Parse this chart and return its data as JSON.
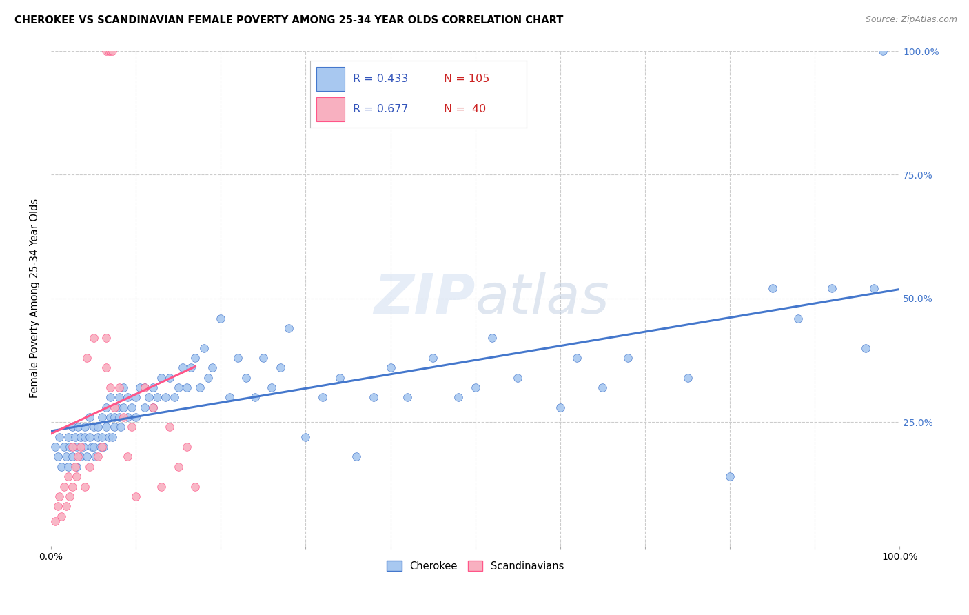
{
  "title": "CHEROKEE VS SCANDINAVIAN FEMALE POVERTY AMONG 25-34 YEAR OLDS CORRELATION CHART",
  "source": "Source: ZipAtlas.com",
  "ylabel": "Female Poverty Among 25-34 Year Olds",
  "xlim": [
    0.0,
    1.0
  ],
  "ylim": [
    0.0,
    1.0
  ],
  "cherokee_color": "#a8c8f0",
  "scandinavian_color": "#f8b0c0",
  "cherokee_line_color": "#4477cc",
  "scandinavian_line_color": "#ff5588",
  "cherokee_R": 0.433,
  "cherokee_N": 105,
  "scandinavian_R": 0.677,
  "scandinavian_N": 40,
  "legend_R_color": "#3355bb",
  "legend_N_color": "#cc2222",
  "watermark": "ZIPatlas",
  "background_color": "#ffffff",
  "grid_color": "#cccccc",
  "cherokee_x": [
    0.005,
    0.008,
    0.01,
    0.012,
    0.015,
    0.018,
    0.02,
    0.02,
    0.022,
    0.025,
    0.025,
    0.028,
    0.03,
    0.03,
    0.032,
    0.035,
    0.035,
    0.038,
    0.04,
    0.04,
    0.042,
    0.045,
    0.045,
    0.048,
    0.05,
    0.05,
    0.052,
    0.055,
    0.055,
    0.058,
    0.06,
    0.06,
    0.062,
    0.065,
    0.065,
    0.068,
    0.07,
    0.07,
    0.072,
    0.075,
    0.075,
    0.078,
    0.08,
    0.08,
    0.082,
    0.085,
    0.085,
    0.09,
    0.09,
    0.095,
    0.1,
    0.1,
    0.105,
    0.11,
    0.11,
    0.115,
    0.12,
    0.12,
    0.125,
    0.13,
    0.135,
    0.14,
    0.145,
    0.15,
    0.155,
    0.16,
    0.165,
    0.17,
    0.175,
    0.18,
    0.185,
    0.19,
    0.2,
    0.21,
    0.22,
    0.23,
    0.24,
    0.25,
    0.26,
    0.27,
    0.28,
    0.3,
    0.32,
    0.34,
    0.36,
    0.38,
    0.4,
    0.42,
    0.45,
    0.48,
    0.5,
    0.52,
    0.55,
    0.6,
    0.62,
    0.65,
    0.68,
    0.75,
    0.8,
    0.85,
    0.88,
    0.92,
    0.96,
    0.97,
    0.98
  ],
  "cherokee_y": [
    0.2,
    0.18,
    0.22,
    0.16,
    0.2,
    0.18,
    0.22,
    0.16,
    0.2,
    0.24,
    0.18,
    0.22,
    0.16,
    0.2,
    0.24,
    0.22,
    0.18,
    0.2,
    0.22,
    0.24,
    0.18,
    0.22,
    0.26,
    0.2,
    0.24,
    0.2,
    0.18,
    0.24,
    0.22,
    0.2,
    0.26,
    0.22,
    0.2,
    0.24,
    0.28,
    0.22,
    0.26,
    0.3,
    0.22,
    0.26,
    0.24,
    0.28,
    0.26,
    0.3,
    0.24,
    0.28,
    0.32,
    0.26,
    0.3,
    0.28,
    0.3,
    0.26,
    0.32,
    0.28,
    0.32,
    0.3,
    0.28,
    0.32,
    0.3,
    0.34,
    0.3,
    0.34,
    0.3,
    0.32,
    0.36,
    0.32,
    0.36,
    0.38,
    0.32,
    0.4,
    0.34,
    0.36,
    0.46,
    0.3,
    0.38,
    0.34,
    0.3,
    0.38,
    0.32,
    0.36,
    0.44,
    0.22,
    0.3,
    0.34,
    0.18,
    0.3,
    0.36,
    0.3,
    0.38,
    0.3,
    0.32,
    0.42,
    0.34,
    0.28,
    0.38,
    0.32,
    0.38,
    0.34,
    0.14,
    0.52,
    0.46,
    0.52,
    0.4,
    0.52,
    1.0
  ],
  "scandinavian_x": [
    0.005,
    0.008,
    0.01,
    0.012,
    0.015,
    0.018,
    0.02,
    0.022,
    0.025,
    0.025,
    0.028,
    0.03,
    0.032,
    0.035,
    0.04,
    0.042,
    0.045,
    0.05,
    0.055,
    0.06,
    0.065,
    0.065,
    0.07,
    0.075,
    0.08,
    0.085,
    0.09,
    0.095,
    0.1,
    0.11,
    0.12,
    0.13,
    0.14,
    0.15,
    0.16,
    0.17,
    0.065,
    0.068,
    0.07,
    0.072
  ],
  "scandinavian_y": [
    0.05,
    0.08,
    0.1,
    0.06,
    0.12,
    0.08,
    0.14,
    0.1,
    0.12,
    0.2,
    0.16,
    0.14,
    0.18,
    0.2,
    0.12,
    0.38,
    0.16,
    0.42,
    0.18,
    0.2,
    0.36,
    0.42,
    0.32,
    0.28,
    0.32,
    0.26,
    0.18,
    0.24,
    0.1,
    0.32,
    0.28,
    0.12,
    0.24,
    0.16,
    0.2,
    0.12,
    1.0,
    1.0,
    1.0,
    1.0
  ]
}
